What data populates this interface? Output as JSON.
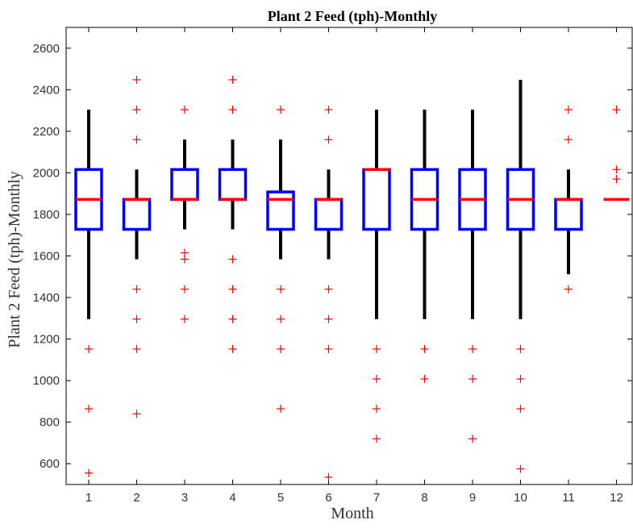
{
  "chart_data": {
    "type": "box",
    "title": "Plant 2 Feed (tph)-Monthly",
    "xlabel": "Month",
    "ylabel": "Plant 2 Feed (tph)-Monthly",
    "categories": [
      "1",
      "2",
      "3",
      "4",
      "5",
      "6",
      "7",
      "8",
      "9",
      "10",
      "11",
      "12"
    ],
    "ylim": [
      500,
      2700
    ],
    "yticks": [
      600,
      800,
      1000,
      1200,
      1400,
      1600,
      1800,
      2000,
      2200,
      2400,
      2600
    ],
    "grid": false,
    "colors": {
      "box": "#0000ff",
      "median": "#ff0000",
      "whisker": "#000000",
      "outlier": "#ff0000"
    },
    "boxes": [
      {
        "month": "1",
        "q1": 1728,
        "median": 1872,
        "q3": 2016,
        "whisker_low": 1296,
        "whisker_high": 2304,
        "outliers": [
          1152,
          864,
          555
        ]
      },
      {
        "month": "2",
        "q1": 1728,
        "median": 1872,
        "q3": 1872,
        "whisker_low": 1584,
        "whisker_high": 2016,
        "outliers": [
          2448,
          2304,
          2160,
          1440,
          1296,
          1152,
          840
        ]
      },
      {
        "month": "3",
        "q1": 1872,
        "median": 1872,
        "q3": 2016,
        "whisker_low": 1728,
        "whisker_high": 2160,
        "outliers": [
          2304,
          1615,
          1584,
          1440,
          1296
        ]
      },
      {
        "month": "4",
        "q1": 1872,
        "median": 1872,
        "q3": 2016,
        "whisker_low": 1728,
        "whisker_high": 2160,
        "outliers": [
          2448,
          2304,
          1584,
          1440,
          1296,
          1152
        ]
      },
      {
        "month": "5",
        "q1": 1728,
        "median": 1872,
        "q3": 1908,
        "whisker_low": 1584,
        "whisker_high": 2160,
        "outliers": [
          2304,
          1440,
          1296,
          1152,
          864
        ]
      },
      {
        "month": "6",
        "q1": 1728,
        "median": 1872,
        "q3": 1872,
        "whisker_low": 1584,
        "whisker_high": 2016,
        "outliers": [
          2304,
          2160,
          1440,
          1296,
          1152,
          535
        ]
      },
      {
        "month": "7",
        "q1": 1728,
        "median": 2016,
        "q3": 2016,
        "whisker_low": 1296,
        "whisker_high": 2304,
        "outliers": [
          1152,
          1008,
          864,
          720
        ]
      },
      {
        "month": "8",
        "q1": 1728,
        "median": 1872,
        "q3": 2016,
        "whisker_low": 1296,
        "whisker_high": 2304,
        "outliers": [
          1152,
          1008
        ]
      },
      {
        "month": "9",
        "q1": 1728,
        "median": 1872,
        "q3": 2016,
        "whisker_low": 1296,
        "whisker_high": 2304,
        "outliers": [
          1152,
          1008,
          720
        ]
      },
      {
        "month": "10",
        "q1": 1728,
        "median": 1872,
        "q3": 2016,
        "whisker_low": 1296,
        "whisker_high": 2448,
        "outliers": [
          1152,
          1008,
          864,
          575
        ]
      },
      {
        "month": "11",
        "q1": 1728,
        "median": 1872,
        "q3": 1872,
        "whisker_low": 1512,
        "whisker_high": 2016,
        "outliers": [
          2304,
          2160,
          1440
        ]
      },
      {
        "month": "12",
        "q1": 1872,
        "median": 1872,
        "q3": 1872,
        "whisker_low": 1872,
        "whisker_high": 1872,
        "outliers": [
          2304,
          2016,
          1970
        ]
      }
    ]
  }
}
